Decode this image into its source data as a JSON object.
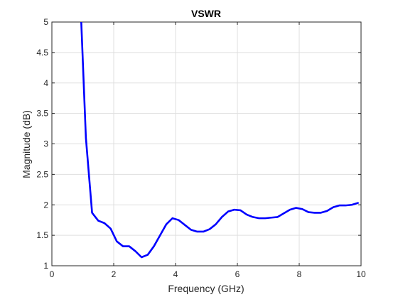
{
  "chart_data": {
    "type": "line",
    "title": "VSWR",
    "xlabel": "Frequency (GHz)",
    "ylabel": "Magnitude (dB)",
    "xlim": [
      0,
      10
    ],
    "ylim": [
      1,
      5
    ],
    "grid": true,
    "xticks": [
      "0",
      "2",
      "4",
      "6",
      "8",
      "10"
    ],
    "yticks": [
      "1",
      "1.5",
      "2",
      "2.5",
      "3",
      "3.5",
      "4",
      "4.5",
      "5"
    ],
    "series": [
      {
        "color": "#0000ff",
        "x": [
          0.95,
          1.1,
          1.3,
          1.5,
          1.7,
          1.9,
          2.1,
          2.3,
          2.5,
          2.7,
          2.9,
          3.1,
          3.3,
          3.5,
          3.7,
          3.9,
          4.1,
          4.3,
          4.5,
          4.7,
          4.9,
          5.1,
          5.3,
          5.5,
          5.7,
          5.9,
          6.1,
          6.3,
          6.5,
          6.7,
          6.9,
          7.1,
          7.3,
          7.5,
          7.7,
          7.9,
          8.1,
          8.3,
          8.5,
          8.7,
          8.9,
          9.1,
          9.3,
          9.5,
          9.7,
          9.9
        ],
        "y": [
          5.0,
          3.1,
          1.87,
          1.74,
          1.7,
          1.61,
          1.4,
          1.32,
          1.32,
          1.24,
          1.14,
          1.18,
          1.32,
          1.5,
          1.68,
          1.78,
          1.75,
          1.67,
          1.59,
          1.56,
          1.56,
          1.6,
          1.68,
          1.8,
          1.89,
          1.92,
          1.91,
          1.84,
          1.8,
          1.78,
          1.78,
          1.79,
          1.8,
          1.86,
          1.92,
          1.95,
          1.93,
          1.88,
          1.87,
          1.87,
          1.9,
          1.96,
          1.99,
          1.99,
          2.0,
          2.03
        ]
      }
    ]
  }
}
